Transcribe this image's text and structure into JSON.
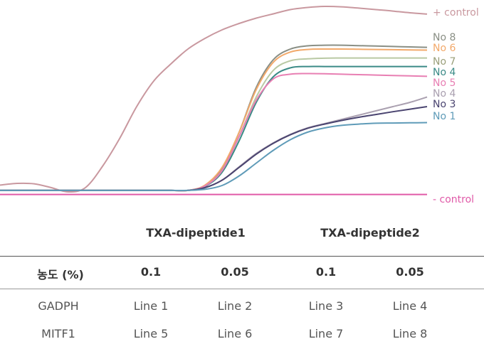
{
  "chart_data": {
    "type": "line",
    "series": [
      {
        "name": "+ control",
        "color": "#c9989f",
        "y": [
          0.868,
          0.86,
          0.862,
          0.88,
          0.9,
          0.88,
          0.78,
          0.65,
          0.5,
          0.38,
          0.3,
          0.23,
          0.18,
          0.14,
          0.11,
          0.085,
          0.065,
          0.045,
          0.035,
          0.03,
          0.032,
          0.038,
          0.045,
          0.052,
          0.06,
          0.066
        ]
      },
      {
        "name": "No 8",
        "color": "#8a8f85",
        "y": [
          0.893,
          0.893,
          0.893,
          0.893,
          0.893,
          0.893,
          0.893,
          0.893,
          0.893,
          0.893,
          0.893,
          0.893,
          0.87,
          0.79,
          0.62,
          0.41,
          0.28,
          0.23,
          0.215,
          0.212,
          0.212,
          0.214,
          0.216,
          0.218,
          0.22,
          0.222
        ]
      },
      {
        "name": "No 6",
        "color": "#f2a96b",
        "y": [
          0.893,
          0.893,
          0.893,
          0.893,
          0.893,
          0.893,
          0.893,
          0.893,
          0.893,
          0.893,
          0.893,
          0.893,
          0.868,
          0.785,
          0.62,
          0.42,
          0.292,
          0.244,
          0.232,
          0.23,
          0.23,
          0.231,
          0.232,
          0.233,
          0.234,
          0.235
        ]
      },
      {
        "name": "No 7",
        "color": "#b9c9a4",
        "y": [
          0.893,
          0.893,
          0.893,
          0.893,
          0.893,
          0.893,
          0.893,
          0.893,
          0.893,
          0.893,
          0.893,
          0.893,
          0.872,
          0.8,
          0.64,
          0.455,
          0.33,
          0.285,
          0.276,
          0.273,
          0.272,
          0.272,
          0.272,
          0.272,
          0.272,
          0.272
        ]
      },
      {
        "name": "No 4",
        "color": "#3a8a86",
        "y": [
          0.893,
          0.893,
          0.893,
          0.893,
          0.893,
          0.893,
          0.893,
          0.893,
          0.893,
          0.893,
          0.893,
          0.893,
          0.874,
          0.808,
          0.66,
          0.48,
          0.36,
          0.318,
          0.312,
          0.312,
          0.312,
          0.312,
          0.312,
          0.312,
          0.312,
          0.312
        ]
      },
      {
        "name": "No 5",
        "color": "#e87fb3",
        "y": [
          0.893,
          0.893,
          0.893,
          0.893,
          0.893,
          0.893,
          0.893,
          0.893,
          0.893,
          0.893,
          0.893,
          0.893,
          0.872,
          0.8,
          0.64,
          0.47,
          0.37,
          0.348,
          0.345,
          0.346,
          0.348,
          0.35,
          0.352,
          0.354,
          0.356,
          0.358
        ]
      },
      {
        "name": "No 4",
        "color": "#aaa0b0",
        "y": [
          0.893,
          0.893,
          0.893,
          0.893,
          0.893,
          0.893,
          0.893,
          0.893,
          0.893,
          0.893,
          0.893,
          0.893,
          0.88,
          0.845,
          0.782,
          0.72,
          0.67,
          0.63,
          0.6,
          0.58,
          0.56,
          0.54,
          0.52,
          0.5,
          0.48,
          0.455
        ]
      },
      {
        "name": "No 3",
        "color": "#4a4470",
        "y": [
          0.893,
          0.893,
          0.893,
          0.893,
          0.893,
          0.893,
          0.893,
          0.893,
          0.893,
          0.893,
          0.893,
          0.893,
          0.88,
          0.845,
          0.785,
          0.723,
          0.672,
          0.632,
          0.602,
          0.582,
          0.565,
          0.55,
          0.537,
          0.524,
          0.512,
          0.5
        ]
      },
      {
        "name": "No 1",
        "color": "#5f9bb8",
        "y": [
          0.893,
          0.893,
          0.893,
          0.893,
          0.893,
          0.893,
          0.893,
          0.893,
          0.893,
          0.893,
          0.893,
          0.893,
          0.888,
          0.87,
          0.825,
          0.765,
          0.705,
          0.655,
          0.62,
          0.6,
          0.588,
          0.582,
          0.578,
          0.577,
          0.576,
          0.575
        ]
      },
      {
        "name": "- control",
        "color": "#e05aa8",
        "y": [
          0.912,
          0.912,
          0.912,
          0.912,
          0.912,
          0.912,
          0.912,
          0.912,
          0.912,
          0.912,
          0.912,
          0.912,
          0.912,
          0.912,
          0.912,
          0.912,
          0.912,
          0.912,
          0.912,
          0.912,
          0.912,
          0.912,
          0.912,
          0.912,
          0.912,
          0.912
        ]
      }
    ],
    "labels_right": [
      {
        "text": "+ control",
        "color": "#c9989f"
      },
      {
        "text": "No 8",
        "color": "#8a8f85"
      },
      {
        "text": "No 6",
        "color": "#f2a96b"
      },
      {
        "text": "No 7",
        "color": "#9a9f7a"
      },
      {
        "text": "No 4",
        "color": "#3a8a86"
      },
      {
        "text": "No 5",
        "color": "#e87fb3"
      },
      {
        "text": "No 4",
        "color": "#aaa0b0"
      },
      {
        "text": "No 3",
        "color": "#4a4470"
      },
      {
        "text": "No 1",
        "color": "#5f9bb8"
      },
      {
        "text": "- control",
        "color": "#e05aa8"
      }
    ]
  },
  "table": {
    "groups": [
      "TXA-dipeptide1",
      "TXA-dipeptide2"
    ],
    "header": [
      "농도 (%)",
      "0.1",
      "0.05",
      "0.1",
      "0.05"
    ],
    "rows": [
      [
        "GADPH",
        "Line 1",
        "Line 2",
        "Line 3",
        "Line 4"
      ],
      [
        "MITF1",
        "Line 5",
        "Line 6",
        "Line 7",
        "Line 8"
      ]
    ]
  }
}
